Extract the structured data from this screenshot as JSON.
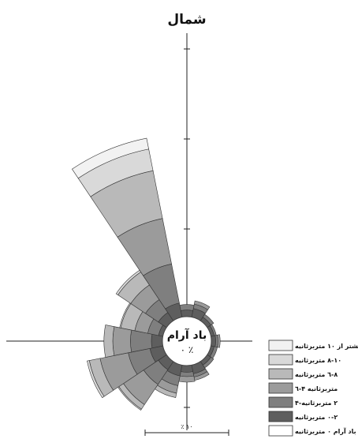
{
  "chart_data": {
    "type": "wind-rose",
    "title": "شمال",
    "center_label": "باد آرام",
    "center_value": "٠ ٪",
    "scale_label": "٪ ١٠",
    "scale_value_percent": 10,
    "legend": [
      {
        "label": "بیشتر از ١٠ متربرثانیه",
        "color": "#f2f2f2"
      },
      {
        "label": "١٠-٨ متربرثانیه",
        "color": "#d9d9d9"
      },
      {
        "label": "٨-٦ متربرثانیه",
        "color": "#b9b9b9"
      },
      {
        "label": "٦-۴ متربرثانیه",
        "color": "#9b9b9b"
      },
      {
        "label": "۴-٢ متربرثانیه",
        "color": "#7f7f7f"
      },
      {
        "label": "٢-٠ متربرثانیه",
        "color": "#5e5e5e"
      },
      {
        "label": "باد آرام ٠ متربرثانیه",
        "color": "#ffffff"
      }
    ],
    "sector_width_deg": 22.5,
    "series": [
      {
        "direction_deg": 22.5,
        "values": [
          0.8,
          0.4,
          0.3,
          0.0,
          0.0,
          0.0
        ]
      },
      {
        "direction_deg": 45,
        "values": [
          0.4,
          0.3,
          0.0,
          0.0,
          0.0,
          0.0
        ]
      },
      {
        "direction_deg": 67.5,
        "values": [
          0.3,
          0.2,
          0.0,
          0.0,
          0.0,
          0.0
        ]
      },
      {
        "direction_deg": 90,
        "values": [
          0.4,
          0.2,
          0.2,
          0.0,
          0.0,
          0.0
        ]
      },
      {
        "direction_deg": 112.5,
        "values": [
          0.3,
          0.3,
          0.0,
          0.0,
          0.0,
          0.0
        ]
      },
      {
        "direction_deg": 135,
        "values": [
          0.4,
          0.3,
          0.0,
          0.0,
          0.0,
          0.0
        ]
      },
      {
        "direction_deg": 157.5,
        "values": [
          0.8,
          0.3,
          0.3,
          0.0,
          0.0,
          0.0
        ]
      },
      {
        "direction_deg": 180,
        "values": [
          0.6,
          0.4,
          0.5,
          0.0,
          0.0,
          0.0
        ]
      },
      {
        "direction_deg": 202.5,
        "values": [
          1.0,
          0.9,
          0.7,
          0.4,
          0.0,
          0.0
        ]
      },
      {
        "direction_deg": 225,
        "values": [
          0.9,
          1.6,
          2.2,
          0.5,
          0.1,
          0.0
        ]
      },
      {
        "direction_deg": 247.5,
        "values": [
          1.2,
          2.0,
          2.6,
          1.0,
          0.2,
          0.0
        ]
      },
      {
        "direction_deg": 270,
        "values": [
          1.0,
          1.9,
          1.6,
          0.8,
          0.0,
          0.0
        ]
      },
      {
        "direction_deg": 292.5,
        "values": [
          0.4,
          1.0,
          1.2,
          1.3,
          0.1,
          0.0
        ]
      },
      {
        "direction_deg": 315,
        "values": [
          0.9,
          1.4,
          1.6,
          1.4,
          0.2,
          0.0
        ]
      },
      {
        "direction_deg": 337.5,
        "values": [
          1.3,
          3.6,
          4.2,
          4.4,
          2.0,
          1.0
        ]
      },
      {
        "direction_deg": 0,
        "values": [
          0.6,
          0.5,
          0.0,
          0.0,
          0.0,
          0.0
        ]
      }
    ]
  }
}
